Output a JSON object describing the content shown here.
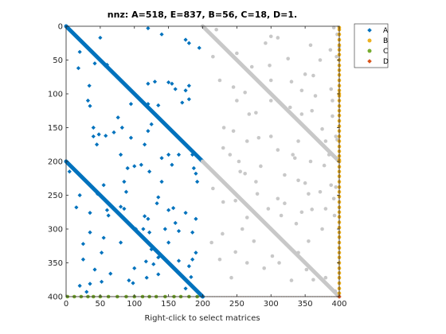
{
  "chart_data": {
    "type": "scatter",
    "title": "nnz: A=518, E=837, B=56, C=18, D=1.",
    "xlabel": "Right-click to select matrices",
    "ylabel": "",
    "xlim": [
      0,
      400
    ],
    "ylim": [
      0,
      400
    ],
    "y_reversed": true,
    "grid": false,
    "legend_position": "outside-top-right",
    "xticks": [
      "0",
      "50",
      "100",
      "150",
      "200",
      "250",
      "300",
      "350",
      "400"
    ],
    "yticks": [
      "0",
      "50",
      "100",
      "150",
      "200",
      "250",
      "300",
      "350",
      "400"
    ],
    "colors": {
      "A": "#0072bd",
      "E": "#c8c8c8",
      "B": "#edb120",
      "C": "#77ac30",
      "D": "#d95319"
    },
    "legend": [
      {
        "name": "A",
        "color": "#0072bd",
        "marker": "diamond"
      },
      {
        "name": "B",
        "color": "#edb120",
        "marker": "circle"
      },
      {
        "name": "C",
        "color": "#77ac30",
        "marker": "circle"
      },
      {
        "name": "D",
        "color": "#d95319",
        "marker": "diamond"
      }
    ],
    "diagonal_bands": [
      {
        "series": "A",
        "x": [
          0,
          200
        ],
        "y": [
          0,
          200
        ]
      },
      {
        "series": "A",
        "x": [
          0,
          200
        ],
        "y": [
          200,
          400
        ]
      },
      {
        "series": "E",
        "x": [
          200,
          400
        ],
        "y": [
          0,
          200
        ]
      },
      {
        "series": "E",
        "x": [
          200,
          400
        ],
        "y": [
          200,
          400
        ]
      }
    ],
    "series": [
      {
        "name": "A",
        "points": [
          [
            20,
            38
          ],
          [
            50,
            17
          ],
          [
            18,
            62
          ],
          [
            60,
            57
          ],
          [
            42,
            55
          ],
          [
            57,
            58
          ],
          [
            34,
            88
          ],
          [
            32,
            110
          ],
          [
            35,
            118
          ],
          [
            110,
            110
          ],
          [
            135,
            117
          ],
          [
            155,
            85
          ],
          [
            160,
            93
          ],
          [
            175,
            95
          ],
          [
            170,
            113
          ],
          [
            180,
            88
          ],
          [
            180,
            108
          ],
          [
            120,
            85
          ],
          [
            130,
            82
          ],
          [
            150,
            83
          ],
          [
            175,
            20
          ],
          [
            195,
            32
          ],
          [
            180,
            25
          ],
          [
            120,
            3
          ],
          [
            140,
            12
          ],
          [
            120,
            115
          ],
          [
            125,
            145
          ],
          [
            120,
            155
          ],
          [
            115,
            175
          ],
          [
            95,
            115
          ],
          [
            76,
            135
          ],
          [
            58,
            162
          ],
          [
            82,
            150
          ],
          [
            40,
            150
          ],
          [
            40,
            163
          ],
          [
            45,
            175
          ],
          [
            70,
            157
          ],
          [
            95,
            165
          ],
          [
            48,
            160
          ],
          [
            150,
            190
          ],
          [
            165,
            190
          ],
          [
            185,
            190
          ],
          [
            155,
            205
          ],
          [
            140,
            230
          ],
          [
            122,
            215
          ],
          [
            88,
            245
          ],
          [
            85,
            270
          ],
          [
            135,
            253
          ],
          [
            133,
            262
          ],
          [
            102,
            300
          ],
          [
            115,
            281
          ],
          [
            113,
            300
          ],
          [
            122,
            305
          ],
          [
            150,
            272
          ],
          [
            157,
            269
          ],
          [
            160,
            291
          ],
          [
            175,
            276
          ],
          [
            190,
            285
          ],
          [
            185,
            305
          ],
          [
            165,
            303
          ],
          [
            180,
            355
          ],
          [
            185,
            345
          ],
          [
            165,
            347
          ],
          [
            135,
            342
          ],
          [
            128,
            352
          ],
          [
            117,
            348
          ],
          [
            100,
            358
          ],
          [
            92,
            376
          ],
          [
            98,
            380
          ],
          [
            118,
            372
          ],
          [
            135,
            367
          ],
          [
            55,
            313
          ],
          [
            52,
            335
          ],
          [
            25,
            322
          ],
          [
            25,
            345
          ],
          [
            42,
            360
          ],
          [
            35,
            381
          ],
          [
            52,
            378
          ],
          [
            65,
            366
          ],
          [
            5,
            215
          ],
          [
            20,
            250
          ],
          [
            15,
            268
          ],
          [
            35,
            276
          ],
          [
            60,
            272
          ],
          [
            80,
            267
          ],
          [
            46,
            248
          ],
          [
            55,
            235
          ],
          [
            85,
            230
          ],
          [
            90,
            210
          ],
          [
            100,
            207
          ],
          [
            110,
            205
          ],
          [
            140,
            195
          ],
          [
            80,
            190
          ],
          [
            62,
            280
          ],
          [
            145,
            300
          ],
          [
            125,
            330
          ],
          [
            187,
            210
          ],
          [
            192,
            230
          ],
          [
            190,
            218
          ],
          [
            35,
            305
          ],
          [
            115,
            315
          ],
          [
            190,
            335
          ],
          [
            183,
            371
          ],
          [
            190,
            390
          ],
          [
            20,
            384
          ],
          [
            30,
            393
          ],
          [
            180,
            380
          ],
          [
            175,
            388
          ],
          [
            150,
            320
          ],
          [
            120,
            285
          ],
          [
            80,
            320
          ]
        ]
      },
      {
        "name": "E",
        "points": [
          [
            210,
            10
          ],
          [
            225,
            80
          ],
          [
            215,
            45
          ],
          [
            250,
            40
          ],
          [
            262,
            98
          ],
          [
            292,
            25
          ],
          [
            300,
            15
          ],
          [
            310,
            17
          ],
          [
            325,
            48
          ],
          [
            330,
            82
          ],
          [
            345,
            95
          ],
          [
            350,
            71
          ],
          [
            362,
            73
          ],
          [
            372,
            50
          ],
          [
            387,
            35
          ],
          [
            392,
            2
          ],
          [
            397,
            12
          ],
          [
            400,
            30
          ],
          [
            358,
            28
          ],
          [
            278,
            128
          ],
          [
            245,
            155
          ],
          [
            265,
            170
          ],
          [
            300,
            163
          ],
          [
            328,
            120
          ],
          [
            345,
            130
          ],
          [
            360,
            125
          ],
          [
            375,
            152
          ],
          [
            390,
            133
          ],
          [
            395,
            163
          ],
          [
            397,
            168
          ],
          [
            310,
            183
          ],
          [
            253,
            200
          ],
          [
            255,
            215
          ],
          [
            278,
            230
          ],
          [
            296,
            270
          ],
          [
            320,
            262
          ],
          [
            345,
            275
          ],
          [
            360,
            271
          ],
          [
            380,
            270
          ],
          [
            393,
            280
          ],
          [
            300,
            300
          ],
          [
            275,
            318
          ],
          [
            258,
            300
          ],
          [
            229,
            307
          ],
          [
            248,
            334
          ],
          [
            265,
            350
          ],
          [
            290,
            358
          ],
          [
            312,
            350
          ],
          [
            330,
            376
          ],
          [
            352,
            360
          ],
          [
            362,
            375
          ],
          [
            380,
            372
          ],
          [
            394,
            392
          ],
          [
            242,
            372
          ],
          [
            225,
            345
          ],
          [
            213,
            320
          ],
          [
            340,
            228
          ],
          [
            355,
            248
          ],
          [
            372,
            245
          ],
          [
            388,
            235
          ],
          [
            395,
            238
          ],
          [
            392,
            255
          ],
          [
            337,
            292
          ],
          [
            310,
            255
          ],
          [
            380,
            170
          ],
          [
            388,
            93
          ],
          [
            272,
            60
          ],
          [
            298,
            58
          ],
          [
            396,
            45
          ],
          [
            220,
            5
          ],
          [
            265,
            283
          ],
          [
            230,
            260
          ],
          [
            215,
            240
          ],
          [
            248,
            258
          ],
          [
            320,
            220
          ],
          [
            332,
            190
          ],
          [
            358,
            200
          ],
          [
            378,
            206
          ],
          [
            300,
            110
          ],
          [
            250,
            110
          ],
          [
            231,
            150
          ],
          [
            340,
            335
          ],
          [
            302,
            340
          ],
          [
            280,
            248
          ],
          [
            350,
            232
          ],
          [
            285,
            207
          ],
          [
            375,
            300
          ],
          [
            268,
            130
          ],
          [
            282,
            165
          ],
          [
            340,
            170
          ],
          [
            300,
            80
          ],
          [
            315,
            280
          ],
          [
            262,
            218
          ],
          [
            240,
            190
          ],
          [
            355,
            318
          ],
          [
            335,
            195
          ],
          [
            245,
            90
          ],
          [
            365,
            103
          ],
          [
            390,
            110
          ],
          [
            385,
            190
          ],
          [
            230,
            180
          ]
        ]
      },
      {
        "name": "B",
        "points": [
          [
            400,
            5
          ],
          [
            400,
            12
          ],
          [
            400,
            20
          ],
          [
            400,
            28
          ],
          [
            400,
            35
          ],
          [
            400,
            42
          ],
          [
            400,
            50
          ],
          [
            400,
            58
          ],
          [
            400,
            65
          ],
          [
            400,
            72
          ],
          [
            400,
            80
          ],
          [
            400,
            88
          ],
          [
            400,
            95
          ],
          [
            400,
            103
          ],
          [
            400,
            110
          ],
          [
            400,
            118
          ],
          [
            400,
            125
          ],
          [
            400,
            132
          ],
          [
            400,
            140
          ],
          [
            400,
            148
          ],
          [
            400,
            155
          ],
          [
            400,
            163
          ],
          [
            400,
            170
          ],
          [
            400,
            178
          ],
          [
            400,
            185
          ],
          [
            400,
            192
          ],
          [
            400,
            200
          ],
          [
            400,
            208
          ],
          [
            400,
            215
          ],
          [
            400,
            222
          ],
          [
            400,
            230
          ],
          [
            400,
            238
          ],
          [
            400,
            245
          ],
          [
            400,
            252
          ],
          [
            400,
            260
          ],
          [
            400,
            268
          ],
          [
            400,
            275
          ],
          [
            400,
            282
          ],
          [
            400,
            290
          ],
          [
            400,
            298
          ],
          [
            400,
            305
          ],
          [
            400,
            312
          ],
          [
            400,
            320
          ],
          [
            400,
            328
          ],
          [
            400,
            335
          ],
          [
            400,
            342
          ],
          [
            400,
            350
          ],
          [
            400,
            358
          ],
          [
            400,
            365
          ],
          [
            400,
            372
          ],
          [
            400,
            380
          ],
          [
            400,
            388
          ],
          [
            400,
            395
          ],
          [
            400,
            2
          ],
          [
            400,
            198
          ],
          [
            400,
            100
          ]
        ]
      },
      {
        "name": "C",
        "points": [
          [
            2,
            400
          ],
          [
            12,
            400
          ],
          [
            22,
            400
          ],
          [
            32,
            400
          ],
          [
            40,
            400
          ],
          [
            50,
            400
          ],
          [
            62,
            400
          ],
          [
            75,
            400
          ],
          [
            88,
            400
          ],
          [
            100,
            400
          ],
          [
            112,
            400
          ],
          [
            122,
            400
          ],
          [
            132,
            400
          ],
          [
            145,
            400
          ],
          [
            158,
            400
          ],
          [
            168,
            400
          ],
          [
            180,
            400
          ],
          [
            192,
            400
          ]
        ]
      },
      {
        "name": "D",
        "points": [
          [
            400,
            400
          ]
        ]
      }
    ]
  }
}
